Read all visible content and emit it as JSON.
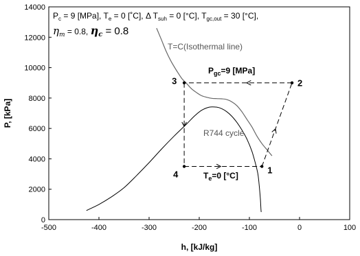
{
  "chart_data": {
    "type": "line",
    "title": "",
    "xlabel": "h, [kJ/kg]",
    "ylabel": "P, [kPa]",
    "xlim": [
      -500,
      100
    ],
    "ylim": [
      0,
      14000
    ],
    "x_ticks": [
      -500,
      -400,
      -300,
      -200,
      -100,
      0,
      100
    ],
    "y_ticks": [
      0,
      2000,
      4000,
      6000,
      8000,
      10000,
      12000,
      14000
    ],
    "grid": false,
    "legend": "none",
    "colors": {
      "dome": "#000000",
      "isotherm": "#666666",
      "cycle": "#000000"
    },
    "header": {
      "line1": {
        "pc_sym": "P",
        "pc_sub": "c",
        "pc_val": " = 9 [MPa], ",
        "te_sym": "T",
        "te_sub": "e",
        "te_val": " = 0 [˚C], Δ  ",
        "tsuh_sym": "T",
        "tsuh_sub": "suh",
        "tsuh_val": " = 0 [°C], ",
        "tgc_sym": "T",
        "tgc_sub": "gc,out",
        "tgc_val": " = 30 [°C],"
      },
      "line2": {
        "eta_m_sym": "η",
        "eta_m_sub": "m",
        "eta_m_val": " = 0.8,  ",
        "eta_c_sym": "η",
        "eta_c_sub": "c",
        "eta_c_val": " = 0.8"
      }
    },
    "annotations": {
      "isotherm": "T=C(Isothermal line)",
      "cycle": "R744 cycle",
      "pgc_main": "P",
      "pgc_sub": "gc",
      "pgc_val": "=9 [MPa]",
      "te_main": "T",
      "te_sub": "e",
      "te_val": "=0 [°C]"
    },
    "points": [
      {
        "label": "1",
        "h": -75,
        "p": 3500
      },
      {
        "label": "2",
        "h": -15,
        "p": 9000
      },
      {
        "label": "3",
        "h": -230,
        "p": 9000
      },
      {
        "label": "4",
        "h": -230,
        "p": 3500
      }
    ],
    "series": [
      {
        "role": "saturation-dome",
        "x": [
          -425,
          -400,
          -375,
          -350,
          -325,
          -300,
          -275,
          -250,
          -225,
          -210,
          -195,
          -180,
          -165,
          -155,
          -145,
          -135,
          -125,
          -115,
          -105,
          -95,
          -88,
          -83,
          -80,
          -78,
          -77,
          -76.5
        ],
        "y": [
          600,
          1000,
          1500,
          2100,
          2900,
          3750,
          4650,
          5500,
          6300,
          6800,
          7200,
          7400,
          7400,
          7300,
          7100,
          6800,
          6400,
          5900,
          5300,
          4500,
          3700,
          3000,
          2100,
          1300,
          700,
          500
        ]
      },
      {
        "role": "isotherm",
        "x": [
          -285,
          -275,
          -265,
          -255,
          -245,
          -235,
          -225,
          -215,
          -205,
          -195,
          -185,
          -175,
          -165,
          -155,
          -145,
          -135,
          -125,
          -115,
          -105,
          -95,
          -85,
          -75,
          -65,
          -55
        ],
        "y": [
          12600,
          11800,
          11000,
          10350,
          9800,
          9300,
          8950,
          8600,
          8350,
          8150,
          8050,
          7980,
          7960,
          7950,
          7900,
          7750,
          7500,
          7100,
          6600,
          6100,
          5500,
          5000,
          4600,
          4200
        ]
      }
    ]
  }
}
